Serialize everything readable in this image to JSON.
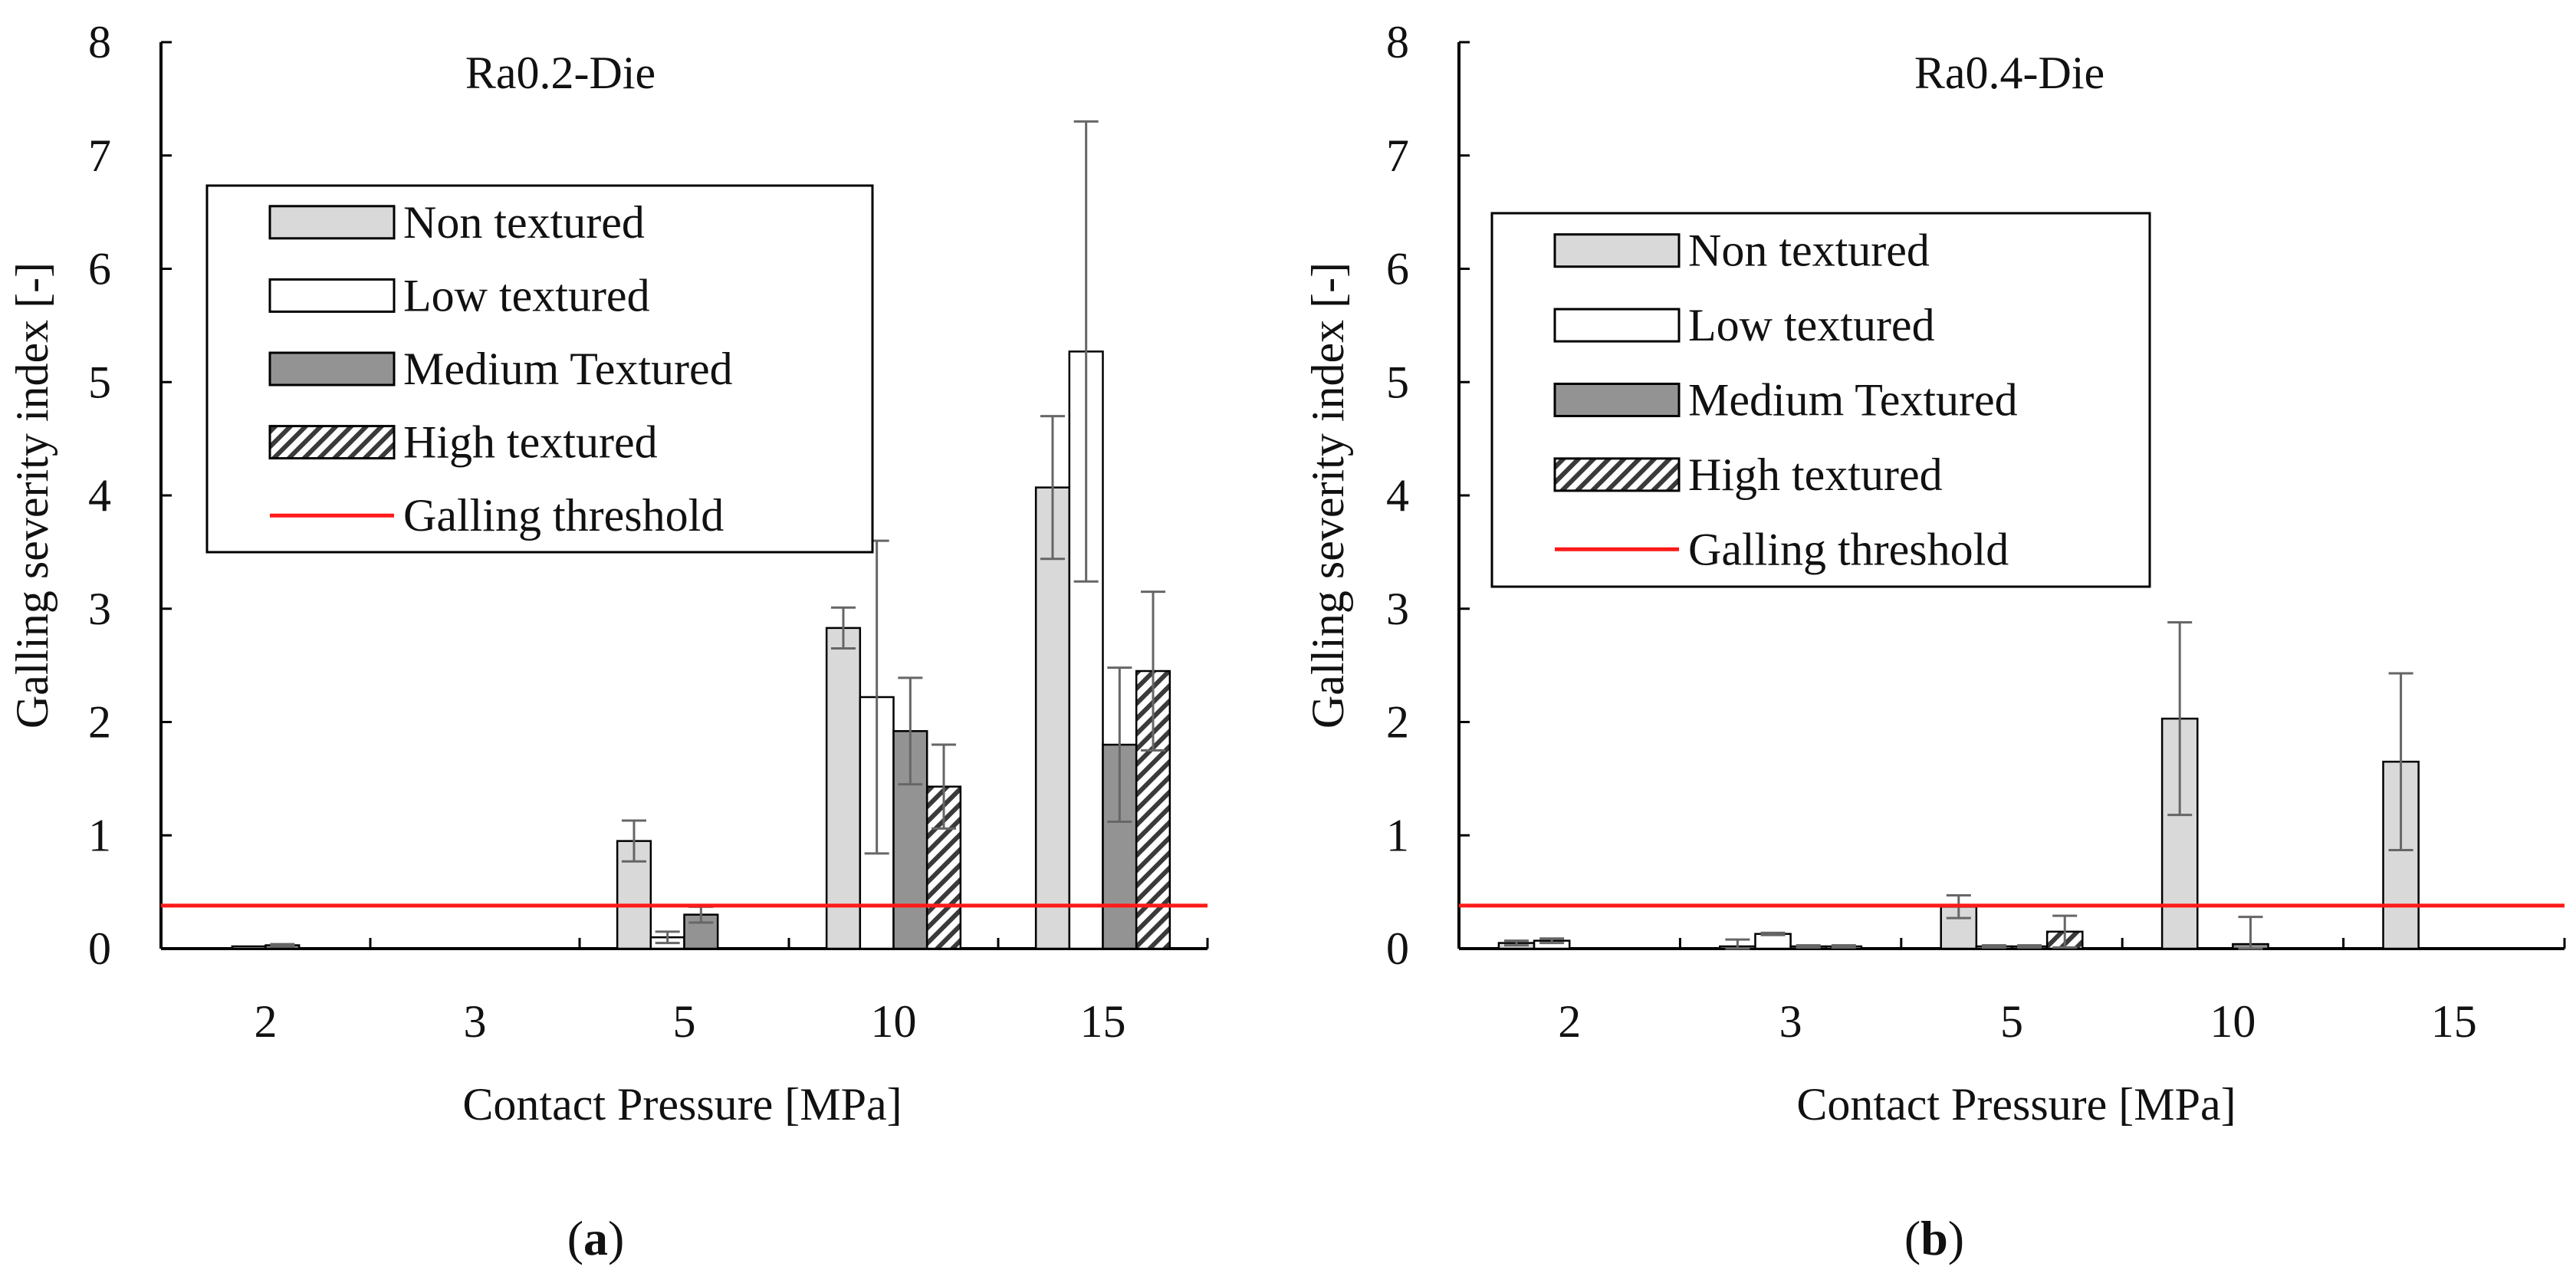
{
  "colors": {
    "non_textured": "#d9d9d9",
    "low_textured": "#ffffff",
    "medium_textured": "#939393",
    "high_textured_stripe": "#3a3a3a",
    "galling_threshold": "#ff1a1a",
    "axis": "#000000",
    "error_bar": "#666666"
  },
  "chart_data": [
    {
      "type": "bar",
      "panel_label": {
        "open": "(",
        "letter": "a",
        "close": ")"
      },
      "title": "Ra0.2-Die",
      "xlabel": "Contact Pressure [MPa]",
      "ylabel": "Galling severity index [-]",
      "ylim": [
        0,
        8
      ],
      "yticks": [
        "0",
        "1",
        "2",
        "3",
        "4",
        "5",
        "6",
        "7",
        "8"
      ],
      "categories": [
        "2",
        "3",
        "5",
        "10",
        "15"
      ],
      "legend_position": "upper-left",
      "series": [
        {
          "name": "Non textured",
          "pattern": "light",
          "values": [
            0,
            0,
            0.95,
            2.83,
            4.07
          ],
          "errors": [
            0,
            0,
            0.18,
            0.18,
            0.63
          ]
        },
        {
          "name": "Low textured",
          "pattern": "white",
          "values": [
            0.02,
            0,
            0.1,
            2.22,
            5.27
          ],
          "errors": [
            0,
            0,
            0.05,
            1.38,
            2.03
          ]
        },
        {
          "name": "Medium Textured",
          "pattern": "dark",
          "values": [
            0.03,
            0,
            0.3,
            1.92,
            1.8
          ],
          "errors": [
            0.01,
            0,
            0.07,
            0.47,
            0.68
          ]
        },
        {
          "name": "High textured",
          "pattern": "hatch",
          "values": [
            0,
            0,
            0,
            1.43,
            2.45
          ],
          "errors": [
            0,
            0,
            0,
            0.37,
            0.7
          ]
        }
      ],
      "threshold": {
        "name": "Galling threshold",
        "value": 0.38
      }
    },
    {
      "type": "bar",
      "panel_label": {
        "open": "(",
        "letter": "b",
        "close": ")"
      },
      "title": "Ra0.4-Die",
      "xlabel": "Contact Pressure [MPa]",
      "ylabel": "Galling severity index [-]",
      "ylim": [
        0,
        8
      ],
      "yticks": [
        "0",
        "1",
        "2",
        "3",
        "4",
        "5",
        "6",
        "7",
        "8"
      ],
      "categories": [
        "2",
        "3",
        "5",
        "10",
        "15"
      ],
      "legend_position": "upper-left",
      "series": [
        {
          "name": "Non textured",
          "pattern": "light",
          "values": [
            0.05,
            0.02,
            0.37,
            2.03,
            1.65
          ],
          "errors": [
            0.02,
            0.06,
            0.1,
            0.85,
            0.78
          ]
        },
        {
          "name": "Low textured",
          "pattern": "white",
          "values": [
            0.07,
            0.13,
            0.02,
            0,
            0
          ],
          "errors": [
            0.02,
            0.01,
            0.01,
            0,
            0
          ]
        },
        {
          "name": "Medium Textured",
          "pattern": "dark",
          "values": [
            0,
            0.02,
            0.02,
            0.04,
            0
          ],
          "errors": [
            0,
            0.01,
            0.01,
            0.24,
            0
          ]
        },
        {
          "name": "High textured",
          "pattern": "hatch",
          "values": [
            0,
            0.02,
            0.15,
            0,
            0
          ],
          "errors": [
            0,
            0.01,
            0.14,
            0,
            0
          ]
        }
      ],
      "threshold": {
        "name": "Galling threshold",
        "value": 0.38
      }
    }
  ]
}
